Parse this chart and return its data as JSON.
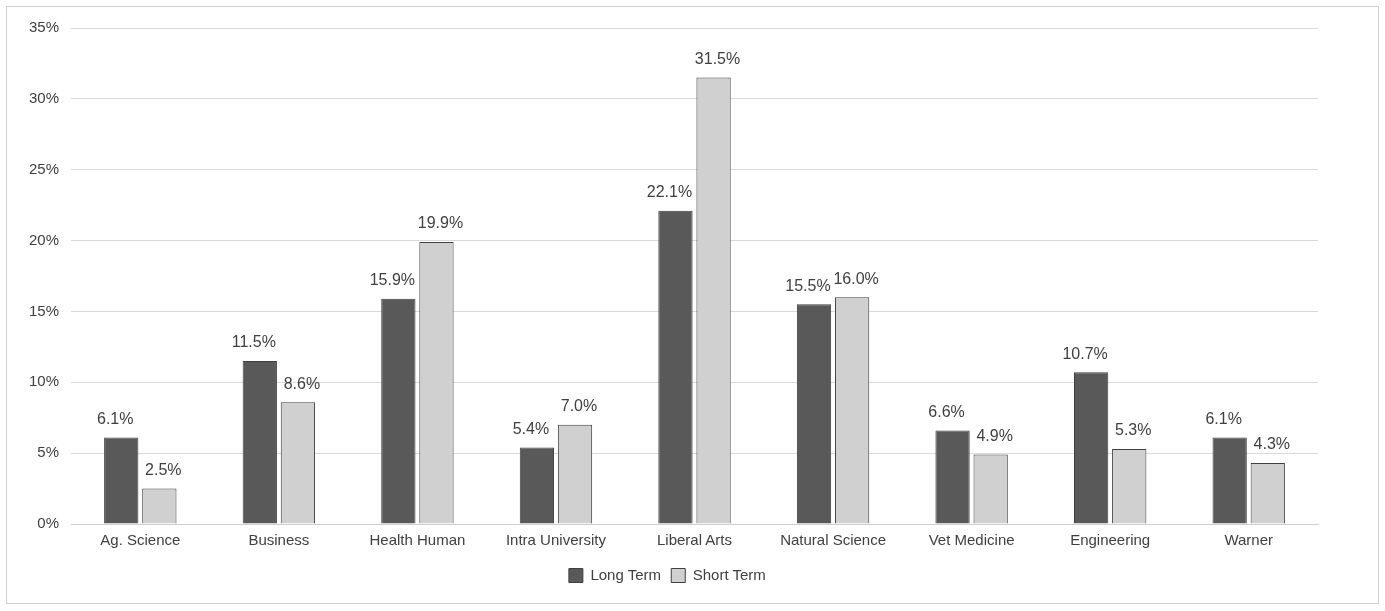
{
  "chart_data": {
    "type": "bar",
    "categories": [
      "Ag. Science",
      "Business",
      "Health Human",
      "Intra University",
      "Liberal Arts",
      "Natural Science",
      "Vet Medicine",
      "Engineering",
      "Warner"
    ],
    "series": [
      {
        "name": "Long Term",
        "color": "#595959",
        "values": [
          6.1,
          11.5,
          15.9,
          5.4,
          22.1,
          15.5,
          6.6,
          10.7,
          6.1
        ],
        "value_labels": [
          "6.1%",
          "11.5%",
          "15.9%",
          "5.4%",
          "22.1%",
          "15.5%",
          "6.6%",
          "10.7%",
          "6.1%"
        ]
      },
      {
        "name": "Short Term",
        "color": "#d0d0d0",
        "values": [
          2.5,
          8.6,
          19.9,
          7.0,
          31.5,
          16.0,
          4.9,
          5.3,
          4.3
        ],
        "value_labels": [
          "2.5%",
          "8.6%",
          "19.9%",
          "7.0%",
          "31.5%",
          "16.0%",
          "4.9%",
          "5.3%",
          "4.3%"
        ]
      }
    ],
    "ylim": [
      0,
      35
    ],
    "yticks": [
      {
        "value": 0,
        "label": "0%"
      },
      {
        "value": 5,
        "label": "5%"
      },
      {
        "value": 10,
        "label": "10%"
      },
      {
        "value": 15,
        "label": "15%"
      },
      {
        "value": 20,
        "label": "20%"
      },
      {
        "value": 25,
        "label": "25%"
      },
      {
        "value": 30,
        "label": "30%"
      },
      {
        "value": 35,
        "label": "35%"
      }
    ],
    "grid": "y",
    "legend": "bottom"
  }
}
